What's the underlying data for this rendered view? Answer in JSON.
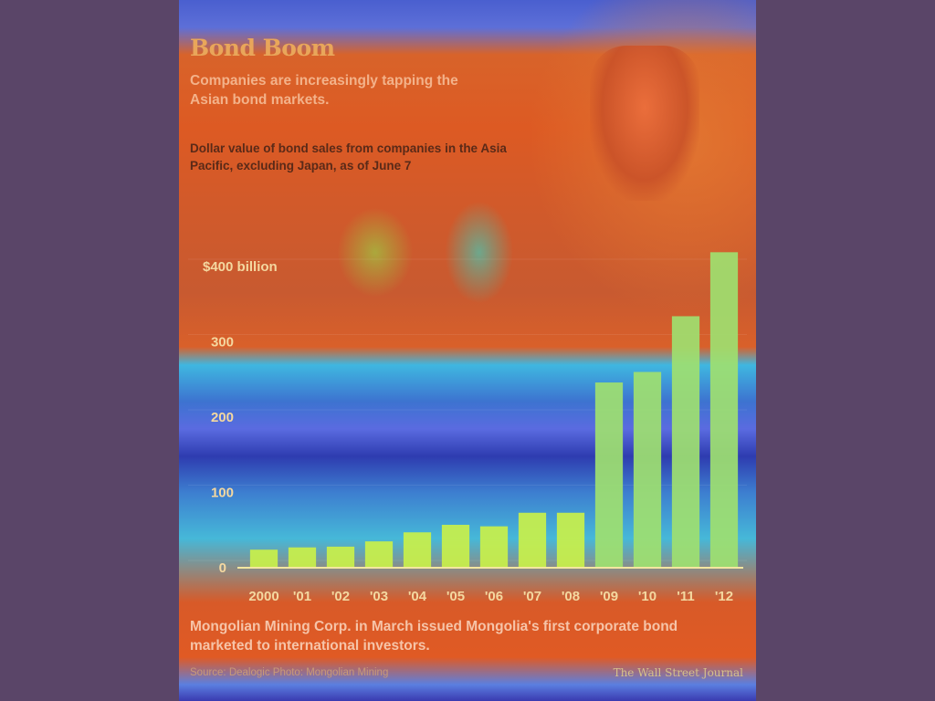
{
  "header": {
    "title": "Bond Boom",
    "subtitle": "Companies are increasingly tapping the Asian bond markets.",
    "note": "Dollar value of bond sales from companies in the Asia Pacific, excluding Japan, as of June 7"
  },
  "footer": {
    "caption": "Mongolian Mining Corp. in March issued Mongolia's first corporate bond marketed to international investors.",
    "source": "Source: Dealogic   Photo: Mongolian Mining",
    "credit": "The Wall Street Journal"
  },
  "colors": {
    "bar": "#c9f04a",
    "bar_tail": "#9ee070",
    "tick_text": "#f4d8a0",
    "axis_line": "#f4e6a0"
  },
  "chart_data": {
    "type": "bar",
    "title": "",
    "xlabel": "",
    "ylabel": "",
    "unit_label": "$400 billion",
    "categories": [
      "2000",
      "'01",
      "'02",
      "'03",
      "'04",
      "'05",
      "'06",
      "'07",
      "'08",
      "'09",
      "'10",
      "'11",
      "'12"
    ],
    "values": [
      24,
      27,
      28,
      35,
      47,
      57,
      55,
      73,
      73,
      246,
      260,
      334,
      419
    ],
    "y_ticks": [
      0,
      100,
      200,
      300,
      400
    ],
    "y_tick_labels": [
      "0",
      "100",
      "200",
      "300",
      "$400 billion"
    ],
    "ylim": [
      0,
      420
    ],
    "grid": false,
    "legend": "none"
  }
}
